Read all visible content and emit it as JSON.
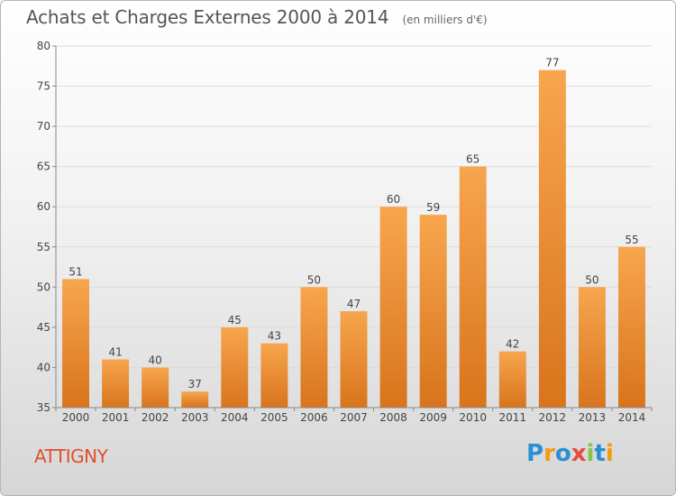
{
  "header": {
    "title": "Achats et Charges Externes 2000 à 2014",
    "unit": "(en milliers d'€)"
  },
  "footer": {
    "place": "ATTIGNY",
    "brand_letters": [
      {
        "ch": "P",
        "color": "#2a8fd6"
      },
      {
        "ch": "r",
        "color": "#f39c12"
      },
      {
        "ch": "o",
        "color": "#2a8fd6"
      },
      {
        "ch": "x",
        "color": "#e74c3c"
      },
      {
        "ch": "i",
        "color": "#8bc34a"
      },
      {
        "ch": "t",
        "color": "#2a8fd6"
      },
      {
        "ch": "i",
        "color": "#f39c12"
      }
    ]
  },
  "colors": {
    "bar_light": "#f7a64e",
    "bar_dark": "#d8741c",
    "grid": "#dcdcdc",
    "axis": "#888888",
    "text": "#444444"
  },
  "chart_data": {
    "type": "bar",
    "title": "Achats et Charges Externes 2000 à 2014",
    "categories": [
      "2000",
      "2001",
      "2002",
      "2003",
      "2004",
      "2005",
      "2006",
      "2007",
      "2008",
      "2009",
      "2010",
      "2011",
      "2012",
      "2013",
      "2014"
    ],
    "values": [
      51,
      41,
      40,
      37,
      45,
      43,
      50,
      47,
      60,
      59,
      65,
      42,
      77,
      50,
      55
    ],
    "ylim": [
      35,
      80
    ],
    "yticks": [
      35,
      40,
      45,
      50,
      55,
      60,
      65,
      70,
      75,
      80
    ],
    "grid": true,
    "xlabel": "",
    "ylabel": ""
  }
}
